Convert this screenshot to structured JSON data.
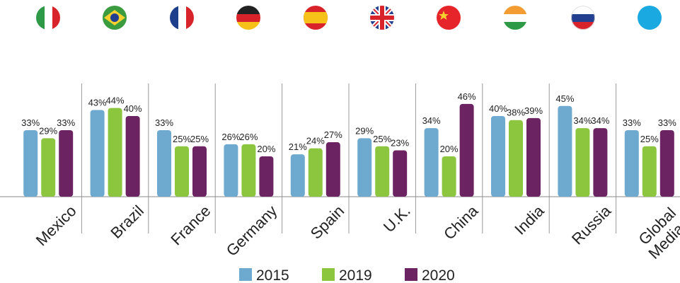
{
  "chart_data": {
    "type": "bar",
    "categories": [
      "Mexico",
      "Brazil",
      "France",
      "Germany",
      "Spain",
      "U.K.",
      "China",
      "India",
      "Russia",
      "Global\nMedian"
    ],
    "series": [
      {
        "name": "2015",
        "color": "#6ea9cf",
        "values": [
          33,
          43,
          33,
          26,
          21,
          29,
          34,
          40,
          45,
          33
        ],
        "value_labels": [
          "33%",
          "43%",
          "33%",
          "26%",
          "21%",
          "29%",
          "34%",
          "40%",
          "45%",
          "33%"
        ]
      },
      {
        "name": "2019",
        "color": "#8cc63f",
        "values": [
          29,
          44,
          25,
          26,
          24,
          25,
          20,
          38,
          34,
          25
        ],
        "value_labels": [
          "29%",
          "44%",
          "25%",
          "26%",
          "24%",
          "25%",
          "20%",
          "38%",
          "34%",
          "25%"
        ]
      },
      {
        "name": "2020",
        "color": "#6b2461",
        "values": [
          33,
          40,
          25,
          20,
          27,
          23,
          46,
          39,
          34,
          33
        ],
        "value_labels": [
          "33%",
          "40%",
          "25%",
          "20%",
          "27%",
          "23%",
          "46%",
          "39%",
          "34%",
          "33%"
        ]
      }
    ]
  }
}
